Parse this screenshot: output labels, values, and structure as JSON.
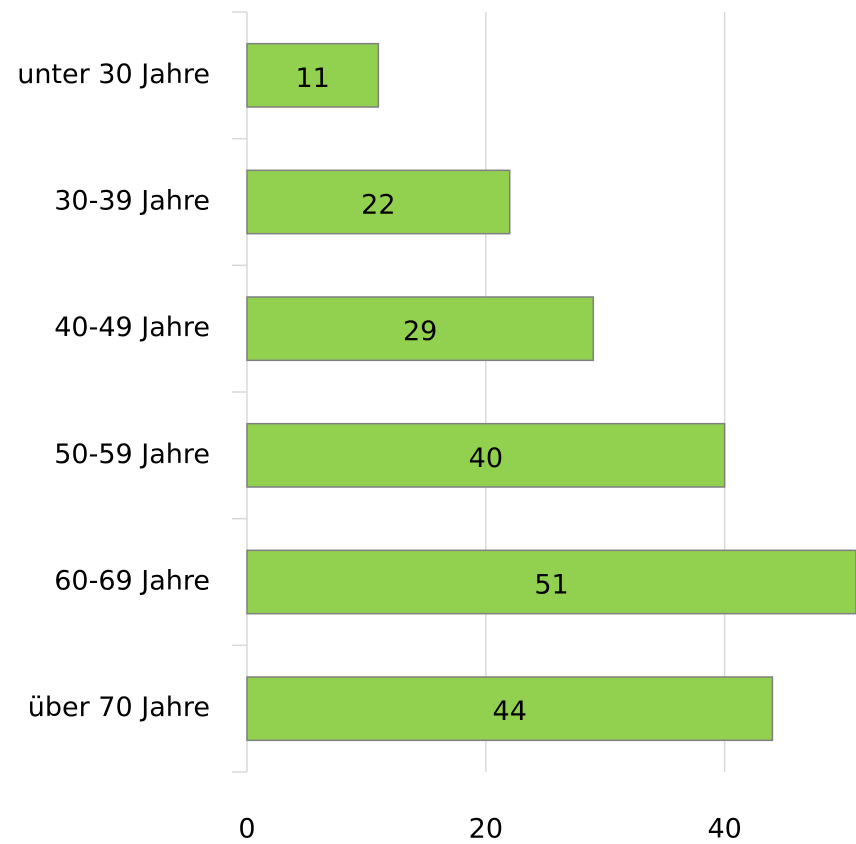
{
  "chart_data": {
    "type": "barh",
    "categories": [
      "unter 30 Jahre",
      "30-39 Jahre",
      "40-49 Jahre",
      "50-59 Jahre",
      "60-69 Jahre",
      "über 70 Jahre"
    ],
    "values": [
      11,
      22,
      29,
      40,
      51,
      44
    ],
    "color": "#92d050",
    "xlim": [
      0,
      51
    ],
    "xticks": [
      0,
      20,
      40
    ],
    "grid": true
  }
}
